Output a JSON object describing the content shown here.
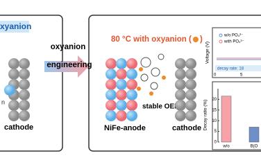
{
  "left_panel": {
    "label": "xyanion",
    "cathode": "cathode",
    "note": "n"
  },
  "arrow": {
    "line1": "oxyanion",
    "line2": "engineering"
  },
  "right_panel": {
    "title": "80 °C with oxyanion (",
    "title_end": ")",
    "stable": "stable OER",
    "anode": "NiFe-anode",
    "cathode": "cathode"
  },
  "inset_line": {
    "legend": [
      "w/o PO₄³⁻",
      "with PO₄³⁻"
    ],
    "ylabel": "Voltage (V)",
    "note": "decay rate: 18",
    "xticks": [
      0,
      5
    ]
  },
  "inset_bar": {
    "ylabel": "Decay ratio (%)",
    "categories": [
      "w/o",
      "B(O"
    ],
    "values": [
      21.5,
      7
    ],
    "colors": [
      "#f7a1a8",
      "#6f8fc9"
    ],
    "ylim": [
      0,
      25
    ],
    "yticks": [
      0,
      5,
      10,
      15,
      20
    ]
  }
}
